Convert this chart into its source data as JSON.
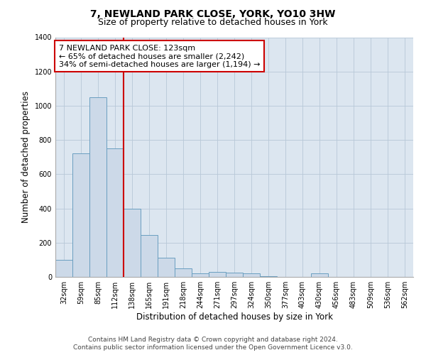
{
  "title": "7, NEWLAND PARK CLOSE, YORK, YO10 3HW",
  "subtitle": "Size of property relative to detached houses in York",
  "xlabel": "Distribution of detached houses by size in York",
  "ylabel": "Number of detached properties",
  "categories": [
    "32sqm",
    "59sqm",
    "85sqm",
    "112sqm",
    "138sqm",
    "165sqm",
    "191sqm",
    "218sqm",
    "244sqm",
    "271sqm",
    "297sqm",
    "324sqm",
    "350sqm",
    "377sqm",
    "403sqm",
    "430sqm",
    "456sqm",
    "483sqm",
    "509sqm",
    "536sqm",
    "562sqm"
  ],
  "values": [
    100,
    720,
    1050,
    750,
    400,
    245,
    110,
    48,
    20,
    30,
    25,
    20,
    5,
    0,
    0,
    20,
    0,
    0,
    0,
    0,
    0
  ],
  "bar_color": "#ccd9e8",
  "bar_edge_color": "#6a9fc0",
  "property_line_x": 3.5,
  "property_line_color": "#cc0000",
  "annotation_text": "7 NEWLAND PARK CLOSE: 123sqm\n← 65% of detached houses are smaller (2,242)\n34% of semi-detached houses are larger (1,194) →",
  "annotation_box_color": "#cc0000",
  "ylim": [
    0,
    1400
  ],
  "yticks": [
    0,
    200,
    400,
    600,
    800,
    1000,
    1200,
    1400
  ],
  "footer_line1": "Contains HM Land Registry data © Crown copyright and database right 2024.",
  "footer_line2": "Contains public sector information licensed under the Open Government Licence v3.0.",
  "bg_color": "#ffffff",
  "plot_bg_color": "#dce6f0",
  "grid_color": "#b8c8d8",
  "title_fontsize": 10,
  "subtitle_fontsize": 9,
  "axis_label_fontsize": 8.5,
  "tick_fontsize": 7,
  "annotation_fontsize": 8,
  "footer_fontsize": 6.5
}
